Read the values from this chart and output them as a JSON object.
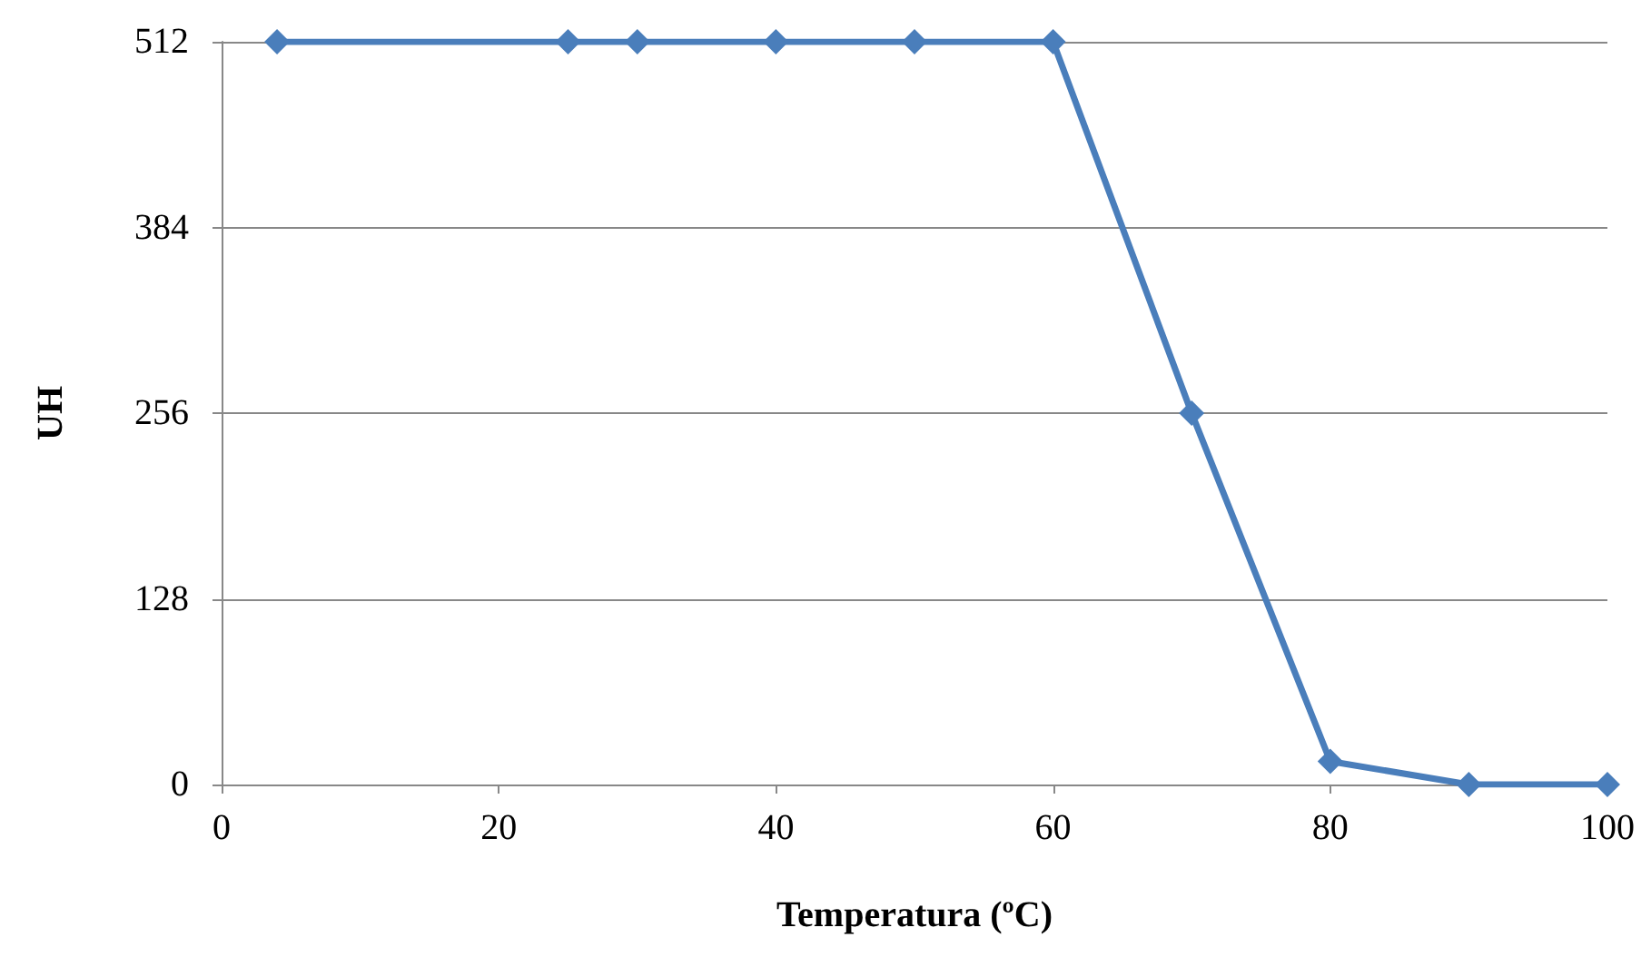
{
  "chart_data": {
    "type": "line",
    "xlabel": "Temperatura (ºC)",
    "ylabel": "UH",
    "x": [
      4,
      25,
      30,
      40,
      50,
      60,
      70,
      80,
      90,
      100
    ],
    "series": [
      {
        "color": "#4a7ebb",
        "values": [
          512,
          512,
          512,
          512,
          512,
          512,
          256,
          16,
          0,
          0
        ]
      }
    ],
    "xlim": [
      0,
      100
    ],
    "xticks": [
      0,
      20,
      40,
      60,
      80,
      100
    ],
    "ylim": [
      0,
      512
    ],
    "yticks": [
      0,
      128,
      256,
      384,
      512
    ],
    "grid": "y",
    "marker": "diamond",
    "line_style": "solid"
  }
}
